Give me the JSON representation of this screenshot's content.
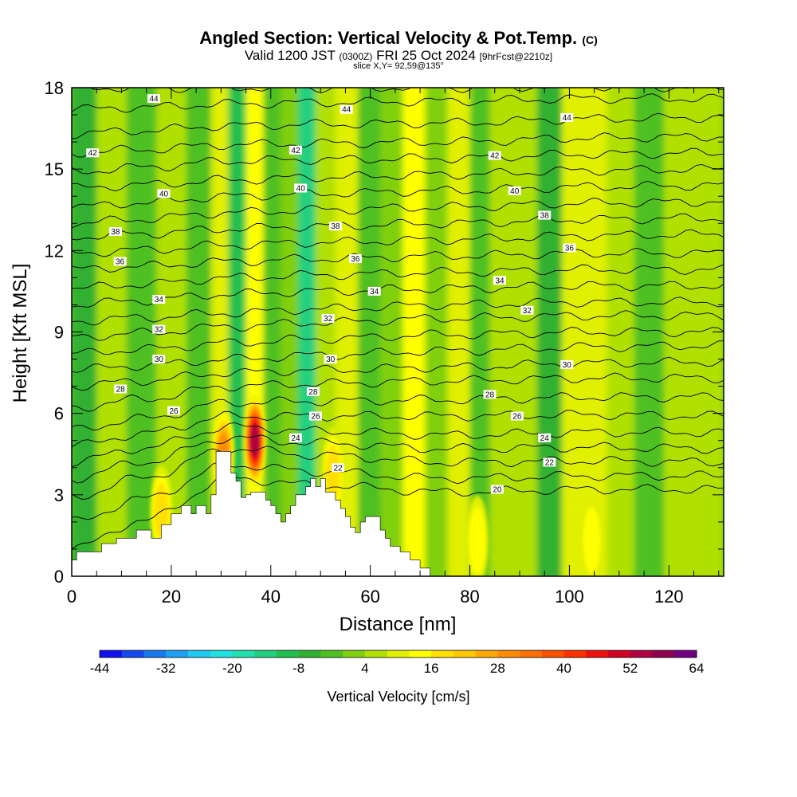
{
  "header": {
    "title": "Angled Section: Vertical Velocity & Pot.Temp.",
    "title_unit": "(C)",
    "valid_prefix": "Valid 1200 JST",
    "valid_utc": "(0300Z)",
    "valid_date": "FRI 25 Oct 2024",
    "forecast": "[9hrFcst@2210z]",
    "slice": "slice X,Y= 92,59@135°"
  },
  "chart_data": {
    "type": "heatmap",
    "xlabel": "Distance [nm]",
    "ylabel": "Height [Kft MSL]",
    "xlim": [
      0,
      131
    ],
    "ylim": [
      0,
      18
    ],
    "x_ticks": [
      0,
      20,
      40,
      60,
      80,
      100,
      120
    ],
    "y_ticks": [
      0,
      3,
      6,
      9,
      12,
      15,
      18
    ],
    "colorbar": {
      "label": "Vertical Velocity [cm/s]",
      "tick_labels": [
        "-44",
        "-32",
        "-20",
        "-8",
        "4",
        "16",
        "28",
        "40",
        "52",
        "64"
      ],
      "levels": [
        -44,
        -40,
        -36,
        -32,
        -28,
        -24,
        -20,
        -16,
        -12,
        -8,
        -4,
        0,
        4,
        8,
        12,
        16,
        20,
        24,
        28,
        32,
        36,
        40,
        44,
        48,
        52,
        56,
        60,
        64
      ],
      "colors": [
        "#1010f0",
        "#1448f0",
        "#1878f0",
        "#1ca0f0",
        "#20c8f0",
        "#20e0e0",
        "#20e0b0",
        "#20d080",
        "#20c050",
        "#30b030",
        "#50c020",
        "#80d010",
        "#b0e000",
        "#e0f000",
        "#ffff00",
        "#ffe000",
        "#ffc800",
        "#ffa800",
        "#ff8c00",
        "#ff7000",
        "#ff5000",
        "#ff3000",
        "#f01010",
        "#d00020",
        "#b00040",
        "#900050",
        "#700080"
      ]
    },
    "velocity_fields": {
      "description_free_fields": true,
      "background": "#64cc18",
      "x_positions": [
        2,
        8,
        14,
        20,
        26,
        30,
        33,
        37,
        40,
        44,
        47,
        51,
        55,
        60,
        64,
        69,
        73,
        78,
        82,
        86,
        91,
        96,
        101,
        105,
        110,
        116,
        122,
        128
      ],
      "column_values": [
        -6,
        4,
        -4,
        6,
        -2,
        10,
        -10,
        12,
        -4,
        2,
        -14,
        4,
        8,
        -4,
        2,
        14,
        2,
        10,
        -2,
        6,
        4,
        -6,
        8,
        10,
        4,
        -4,
        4,
        6
      ]
    },
    "updraft_cores": [
      {
        "x": 30.5,
        "y": 4.5,
        "value": 28
      },
      {
        "x": 36.8,
        "y": 5.0,
        "value": 52
      },
      {
        "x": 18.0,
        "y": 2.4,
        "value": 16
      },
      {
        "x": 52.5,
        "y": 3.8,
        "value": 16
      },
      {
        "x": 81.5,
        "y": 1.3,
        "value": 12
      },
      {
        "x": 104.5,
        "y": 1.3,
        "value": 12
      }
    ],
    "terrain": {
      "x": [
        0,
        1,
        1,
        6,
        6,
        9,
        9,
        13,
        13,
        16,
        16,
        18,
        18,
        20,
        20,
        22,
        22,
        24,
        24,
        25,
        25,
        27,
        27,
        28,
        28,
        29,
        29,
        32,
        32,
        33,
        33,
        34,
        34,
        35,
        35,
        36,
        36,
        39,
        39,
        40,
        40,
        41,
        41,
        42,
        42,
        43,
        43,
        44,
        44,
        45,
        45,
        47,
        47,
        48,
        48,
        49,
        49,
        50,
        50,
        51,
        51,
        53,
        53,
        54,
        54,
        55,
        55,
        56,
        56,
        57,
        57,
        58,
        58,
        59,
        59,
        62,
        62,
        63,
        63,
        64,
        64,
        66,
        66,
        68,
        68,
        70,
        70,
        72,
        72,
        131
      ],
      "y": [
        0.6,
        0.6,
        0.9,
        0.9,
        1.2,
        1.2,
        1.4,
        1.4,
        1.7,
        1.7,
        1.4,
        1.4,
        1.9,
        1.9,
        2.3,
        2.3,
        2.6,
        2.6,
        2.3,
        2.3,
        2.6,
        2.6,
        2.3,
        2.3,
        3.0,
        3.0,
        4.6,
        4.6,
        3.8,
        3.8,
        3.5,
        3.5,
        2.9,
        2.9,
        3.0,
        3.0,
        3.1,
        3.1,
        2.8,
        2.8,
        2.6,
        2.6,
        2.3,
        2.3,
        2.0,
        2.0,
        2.3,
        2.3,
        2.6,
        2.6,
        3.0,
        3.0,
        3.3,
        3.3,
        3.6,
        3.6,
        3.3,
        3.3,
        3.6,
        3.6,
        3.1,
        3.1,
        2.8,
        2.8,
        2.5,
        2.5,
        2.2,
        2.2,
        1.8,
        1.8,
        1.6,
        1.6,
        2.0,
        2.0,
        2.2,
        2.2,
        1.7,
        1.7,
        1.4,
        1.4,
        1.1,
        1.1,
        0.9,
        0.9,
        0.6,
        0.6,
        0.3,
        0.3,
        0,
        0
      ]
    },
    "theta_lines": {
      "levels": [
        20,
        21,
        22,
        23,
        24,
        25,
        26,
        27,
        28,
        29,
        30,
        31,
        32,
        33,
        34,
        35,
        36,
        37,
        38,
        39,
        40,
        41,
        42,
        43,
        44,
        45
      ],
      "heights_at_left": [
        1.0,
        2.0,
        2.9,
        3.6,
        4.2,
        4.8,
        5.4,
        6.2,
        7.0,
        7.6,
        8.2,
        8.8,
        9.4,
        10.0,
        10.6,
        11.3,
        11.9,
        12.5,
        13.0,
        13.6,
        14.3,
        14.9,
        15.6,
        16.3,
        17.2,
        18.0
      ],
      "heights_at_peak": [
        3.6,
        4.1,
        4.7,
        5.1,
        5.5,
        5.9,
        6.4,
        7.0,
        7.5,
        8.0,
        8.6,
        9.2,
        9.7,
        10.4,
        11.0,
        11.6,
        12.2,
        12.8,
        13.4,
        14.0,
        14.6,
        15.3,
        15.9,
        16.6,
        17.4,
        18.0
      ],
      "heights_at_mid": [
        3.1,
        3.6,
        4.2,
        4.7,
        5.2,
        5.9,
        6.5,
        7.2,
        7.7,
        8.3,
        8.9,
        9.5,
        10.0,
        10.6,
        11.2,
        11.8,
        12.4,
        13.0,
        13.6,
        14.2,
        14.8,
        15.4,
        16.0,
        16.7,
        17.5,
        18.0
      ],
      "heights_at_right": [
        3.2,
        3.7,
        4.2,
        4.7,
        5.3,
        5.9,
        6.6,
        7.3,
        7.9,
        8.5,
        9.0,
        9.6,
        10.1,
        10.7,
        11.3,
        11.9,
        12.6,
        13.2,
        13.8,
        14.4,
        15.0,
        15.6,
        16.2,
        16.9,
        17.6,
        18.0
      ],
      "peak_x": 32,
      "mid_x": 75,
      "labels": [
        {
          "text": "44",
          "x": 16.5,
          "y": 17.6
        },
        {
          "text": "44",
          "x": 55.2,
          "y": 17.2
        },
        {
          "text": "44",
          "x": 99.5,
          "y": 16.9
        },
        {
          "text": "42",
          "x": 4.2,
          "y": 15.6
        },
        {
          "text": "42",
          "x": 45.0,
          "y": 15.7
        },
        {
          "text": "42",
          "x": 85.0,
          "y": 15.5
        },
        {
          "text": "40",
          "x": 18.5,
          "y": 14.1
        },
        {
          "text": "40",
          "x": 46.0,
          "y": 14.3
        },
        {
          "text": "40",
          "x": 89.0,
          "y": 14.2
        },
        {
          "text": "38",
          "x": 8.8,
          "y": 12.7
        },
        {
          "text": "38",
          "x": 53.0,
          "y": 12.9
        },
        {
          "text": "38",
          "x": 95.0,
          "y": 13.3
        },
        {
          "text": "36",
          "x": 9.7,
          "y": 11.6
        },
        {
          "text": "36",
          "x": 57.0,
          "y": 11.7
        },
        {
          "text": "36",
          "x": 100.0,
          "y": 12.1
        },
        {
          "text": "34",
          "x": 17.5,
          "y": 10.2
        },
        {
          "text": "34",
          "x": 60.8,
          "y": 10.5
        },
        {
          "text": "34",
          "x": 86.0,
          "y": 10.9
        },
        {
          "text": "32",
          "x": 17.5,
          "y": 9.1
        },
        {
          "text": "32",
          "x": 51.5,
          "y": 9.5
        },
        {
          "text": "32",
          "x": 91.5,
          "y": 9.8
        },
        {
          "text": "30",
          "x": 17.5,
          "y": 8.0
        },
        {
          "text": "30",
          "x": 52.0,
          "y": 8.0
        },
        {
          "text": "30",
          "x": 99.5,
          "y": 7.8
        },
        {
          "text": "28",
          "x": 9.8,
          "y": 6.9
        },
        {
          "text": "28",
          "x": 48.5,
          "y": 6.8
        },
        {
          "text": "28",
          "x": 84.0,
          "y": 6.7
        },
        {
          "text": "26",
          "x": 20.5,
          "y": 6.1
        },
        {
          "text": "26",
          "x": 49.0,
          "y": 5.9
        },
        {
          "text": "26",
          "x": 89.5,
          "y": 5.9
        },
        {
          "text": "24",
          "x": 45.0,
          "y": 5.1
        },
        {
          "text": "24",
          "x": 95.0,
          "y": 5.1
        },
        {
          "text": "22",
          "x": 53.5,
          "y": 4.0
        },
        {
          "text": "22",
          "x": 96.0,
          "y": 4.2
        },
        {
          "text": "20",
          "x": 85.5,
          "y": 3.2
        }
      ]
    }
  }
}
